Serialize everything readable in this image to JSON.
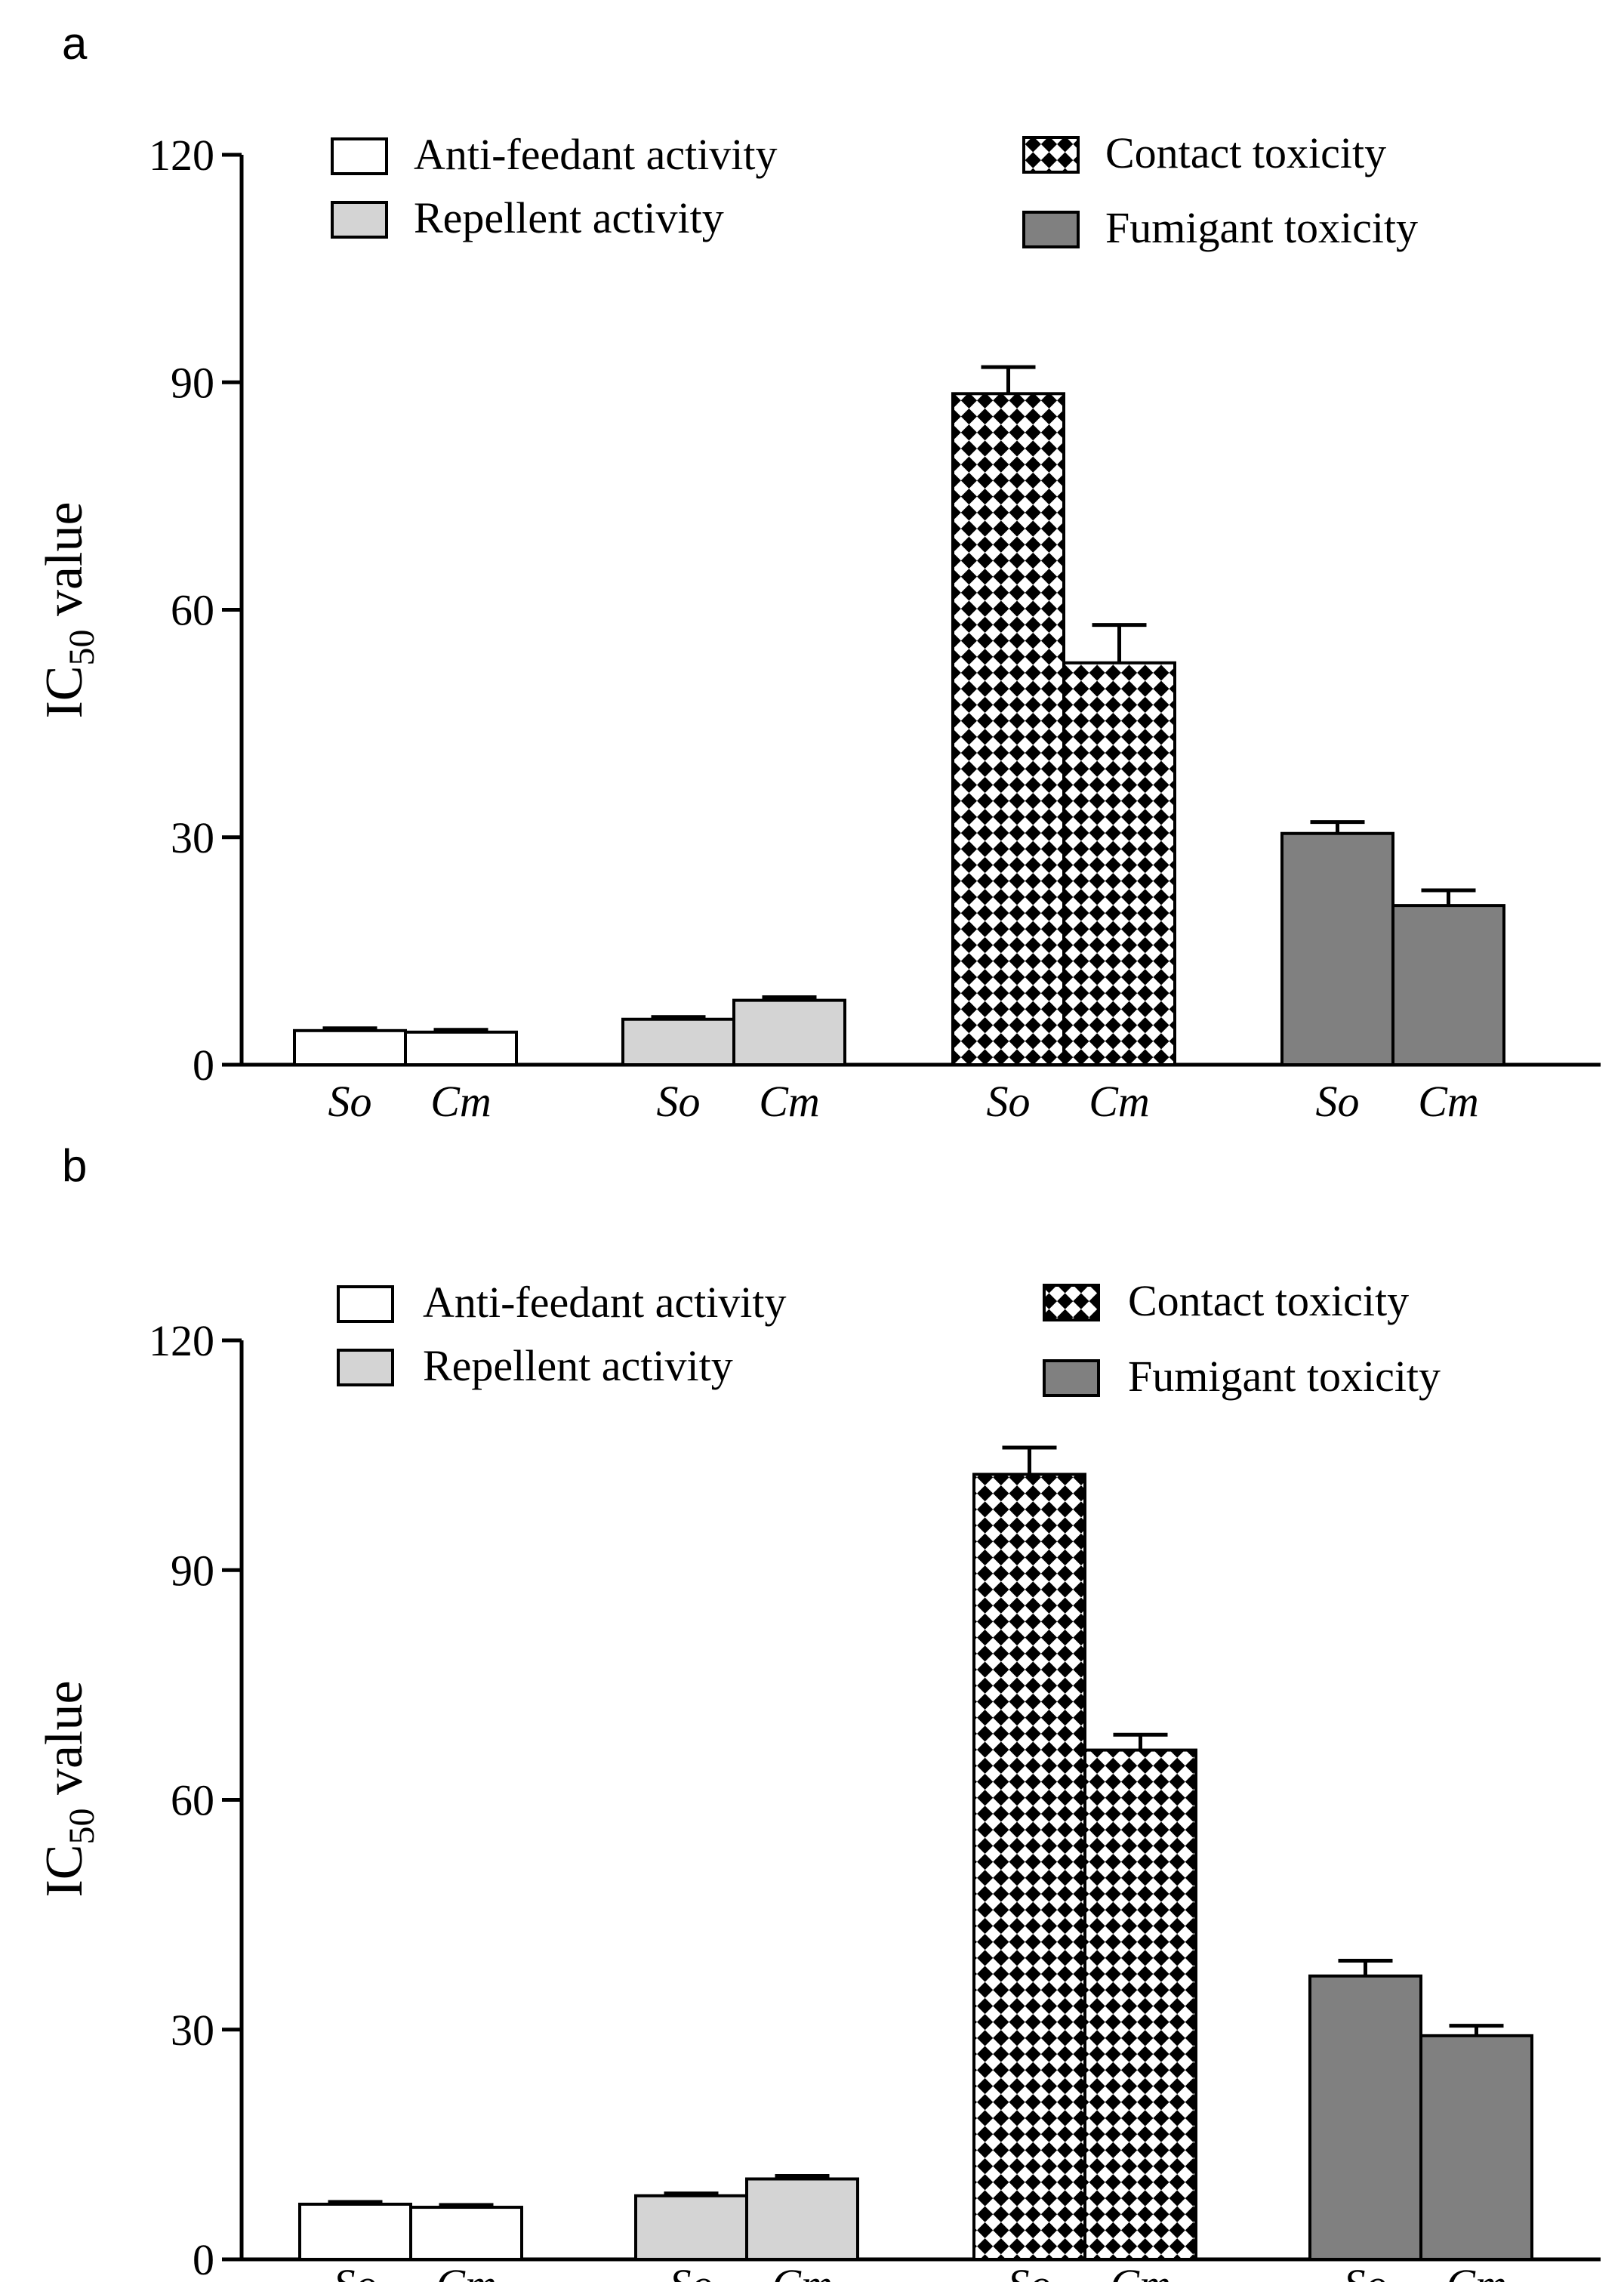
{
  "chart_data": [
    {
      "type": "bar",
      "panel_label": "a",
      "ylabel_main": "IC",
      "ylabel_sub": "50",
      "ylabel_rest": " value",
      "ylim": [
        0,
        120
      ],
      "yticks": [
        "0",
        "30",
        "60",
        "90",
        "120"
      ],
      "groups": [
        "Anti-feedant activity",
        "Repellent activity",
        "Contact toxicity",
        "Fumigant toxicity"
      ],
      "categories": [
        "So",
        "Cm"
      ],
      "series": [
        {
          "name": "Anti-feedant activity",
          "values": [
            4.5,
            4.3
          ],
          "errors": [
            0.3,
            0.3
          ]
        },
        {
          "name": "Repellent activity",
          "values": [
            6.0,
            8.5
          ],
          "errors": [
            0.3,
            0.4
          ]
        },
        {
          "name": "Contact toxicity",
          "values": [
            88.5,
            53.0
          ],
          "errors": [
            3.5,
            5.0
          ]
        },
        {
          "name": "Fumigant toxicity",
          "values": [
            30.5,
            21.0
          ],
          "errors": [
            1.5,
            2.0
          ]
        }
      ],
      "legend": [
        "Anti-feedant activity",
        "Repellent activity",
        "Contact toxicity",
        "Fumigant toxicity"
      ]
    },
    {
      "type": "bar",
      "panel_label": "b",
      "ylabel_main": "IC",
      "ylabel_sub": "50",
      "ylabel_rest": " value",
      "ylim": [
        0,
        120
      ],
      "yticks": [
        "0",
        "30",
        "60",
        "90",
        "120"
      ],
      "groups": [
        "Anti-feedant activity",
        "Repellent activity",
        "Contact toxicity",
        "Fumigant toxicity"
      ],
      "categories": [
        "So",
        "Cm"
      ],
      "series": [
        {
          "name": "Anti-feedant activity",
          "values": [
            7.2,
            6.8
          ],
          "errors": [
            0.3,
            0.3
          ]
        },
        {
          "name": "Repellent activity",
          "values": [
            8.3,
            10.5
          ],
          "errors": [
            0.3,
            0.4
          ]
        },
        {
          "name": "Contact toxicity",
          "values": [
            102.5,
            66.5
          ],
          "errors": [
            3.5,
            2.0
          ]
        },
        {
          "name": "Fumigant toxicity",
          "values": [
            37.0,
            29.2
          ],
          "errors": [
            2.0,
            1.3
          ]
        }
      ],
      "legend": [
        "Anti-feedant activity",
        "Repellent activity",
        "Contact toxicity",
        "Fumigant toxicity"
      ]
    }
  ]
}
